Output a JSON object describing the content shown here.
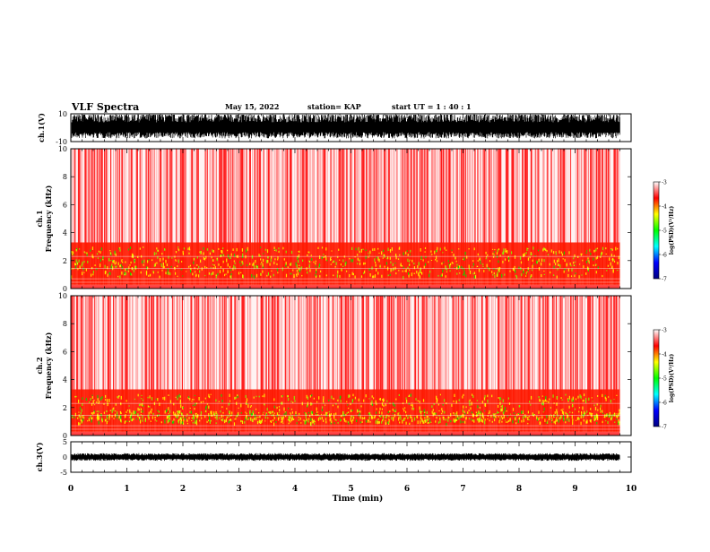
{
  "header": {
    "title": "VLF Spectra",
    "date": "May 15, 2022",
    "station": "station= KAP",
    "start": "start  UT =   1 : 40 : 1"
  },
  "chart_data": [
    {
      "type": "line",
      "id": "ch1-waveform",
      "ylabel": "ch.1(V)",
      "ylim": [
        -10,
        10
      ],
      "yticks": [
        "10",
        "-10"
      ],
      "note": "dense saturated waveform filling most of range"
    },
    {
      "type": "heatmap",
      "id": "ch1-spectrogram",
      "ylabel": "ch.1\nFrequency  (kHz)",
      "ylabel_line1": "ch.1",
      "ylabel_line2": "Frequency  (kHz)",
      "ylim": [
        0,
        10
      ],
      "yticks": [
        "0",
        "2",
        "4",
        "6",
        "8",
        "10"
      ],
      "colorbar": {
        "label": "log(PSD)(V²/Hz)",
        "range": [
          -7,
          -3
        ],
        "ticks": [
          "-3",
          "-4",
          "-5",
          "-6",
          "-7"
        ],
        "colors": [
          "#000080",
          "#0000ff",
          "#00ffff",
          "#00ff00",
          "#ffff00",
          "#ff0000",
          "#ffffff"
        ]
      }
    },
    {
      "type": "heatmap",
      "id": "ch2-spectrogram",
      "ylabel_line1": "ch.2",
      "ylabel_line2": "Frequency  (kHz)",
      "ylim": [
        0,
        10
      ],
      "yticks": [
        "0",
        "2",
        "4",
        "6",
        "8",
        "10"
      ],
      "colorbar": {
        "label": "log(PSD)(V²/Hz)",
        "range": [
          -7,
          -3
        ],
        "ticks": [
          "-3",
          "-4",
          "-5",
          "-6",
          "-7"
        ]
      }
    },
    {
      "type": "line",
      "id": "ch3-waveform",
      "ylabel": "ch.3(V)",
      "ylim": [
        -5,
        5
      ],
      "yticks": [
        "5",
        "0",
        "-5"
      ],
      "note": "thin flat band near 0 V"
    }
  ],
  "xaxis": {
    "label": "Time  (min)",
    "range": [
      0,
      10
    ],
    "ticks": [
      "0",
      "1",
      "2",
      "3",
      "4",
      "5",
      "6",
      "7",
      "8",
      "9",
      "10"
    ],
    "data_end": 9.8
  }
}
